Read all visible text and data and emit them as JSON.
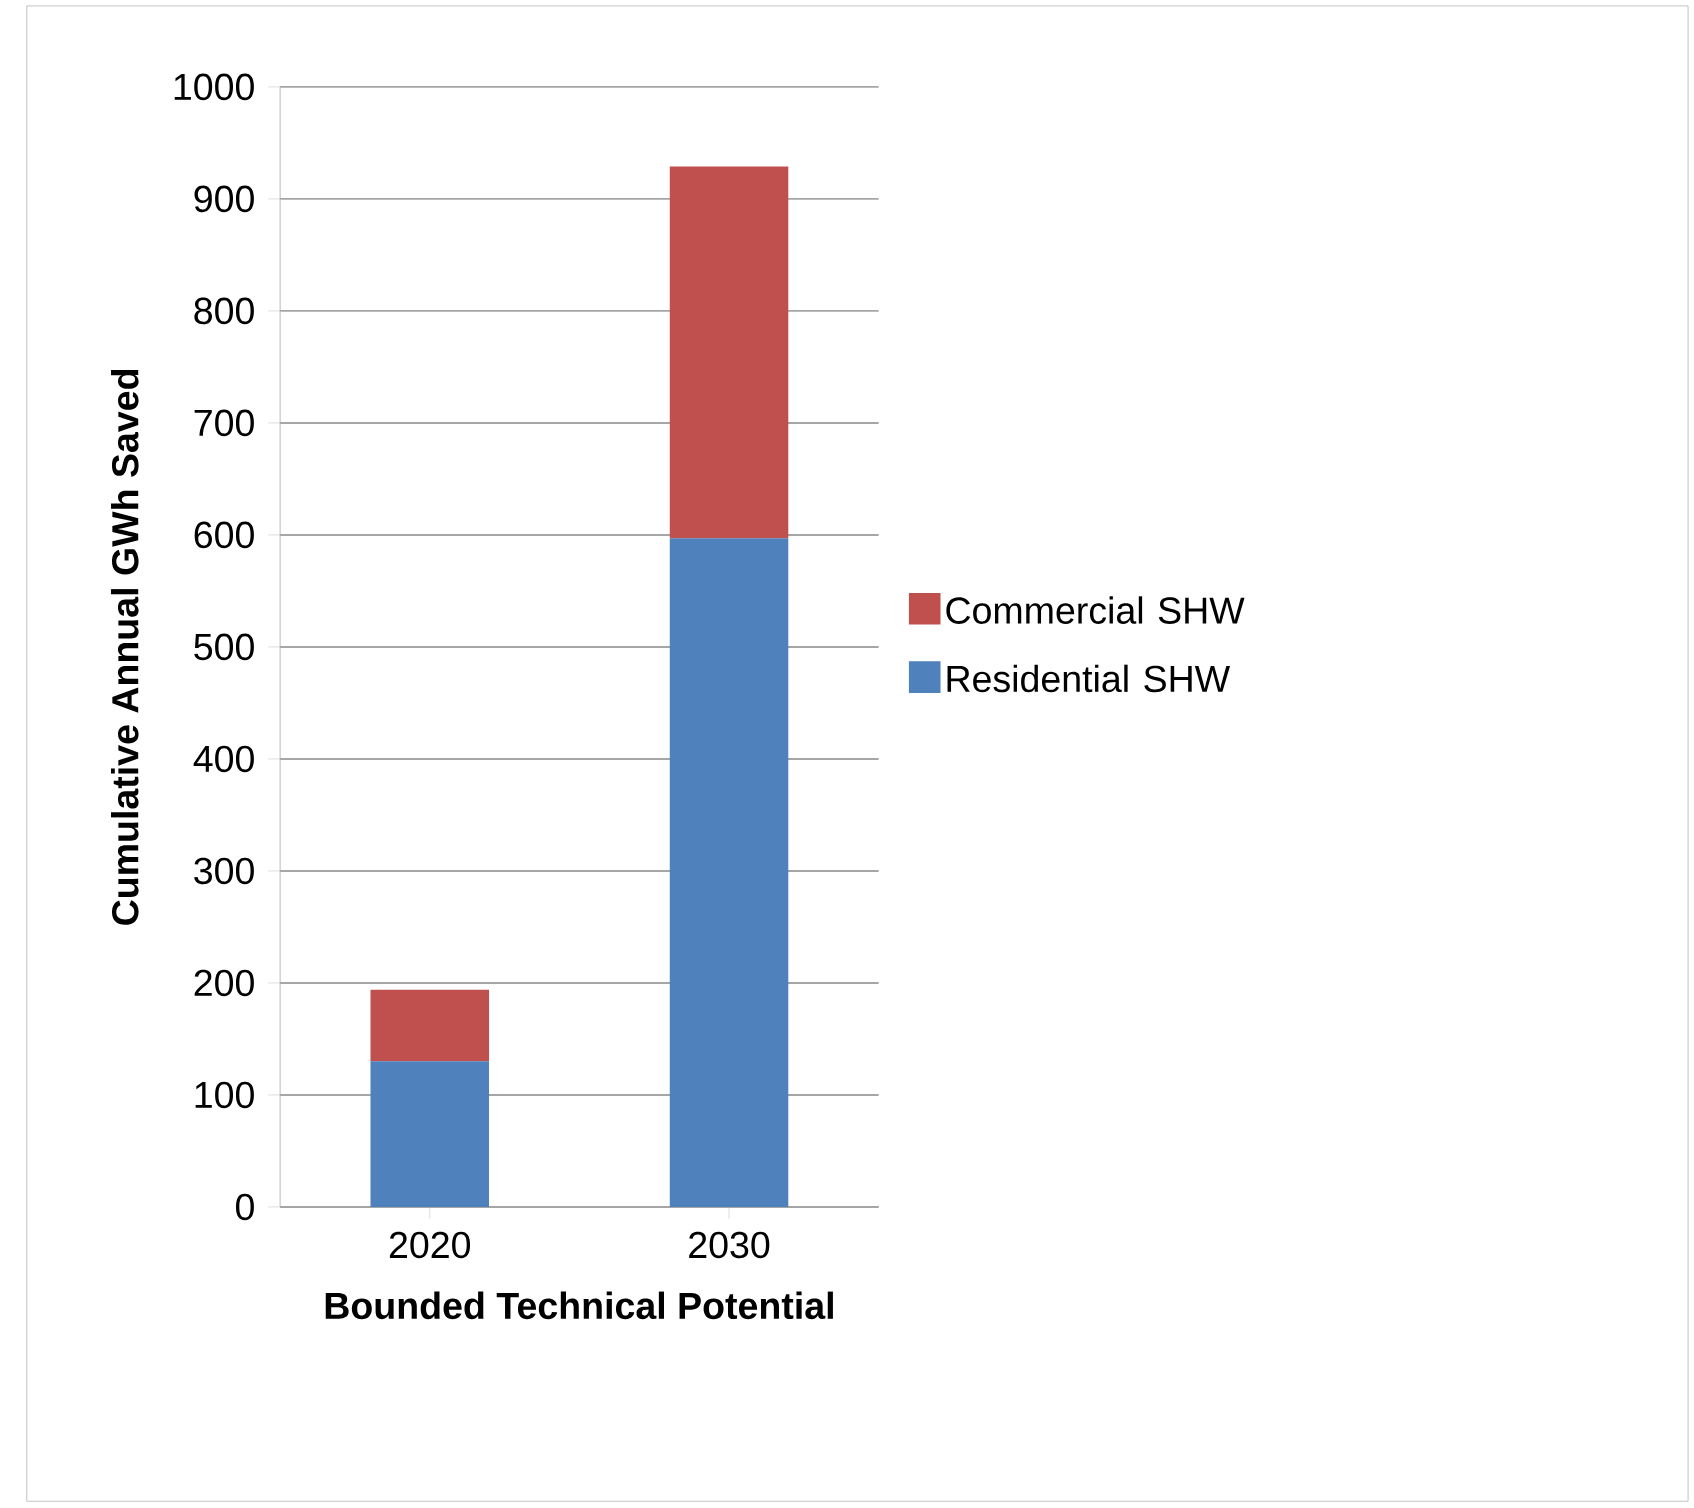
{
  "chart_data": {
    "type": "bar",
    "stacked": true,
    "xlabel": "Bounded Technical Potential",
    "ylabel": "Cumulative Annual GWh Saved",
    "categories": [
      "2020",
      "2030"
    ],
    "series": [
      {
        "name": "Residential SHW",
        "color": "#4f81bd",
        "values": [
          130,
          597
        ]
      },
      {
        "name": "Commercial SHW",
        "color": "#c0504d",
        "values": [
          64,
          332
        ]
      }
    ],
    "ylim": [
      0,
      1000
    ],
    "yticks": [
      0,
      100,
      200,
      300,
      400,
      500,
      600,
      700,
      800,
      900,
      1000
    ],
    "grid": "y",
    "legend": "right"
  }
}
